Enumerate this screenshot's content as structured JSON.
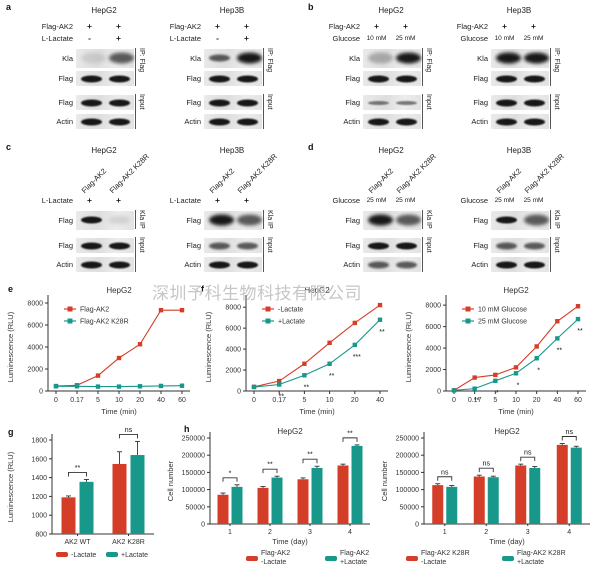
{
  "watermark": {
    "text": "深圳予科生物科技有限公司"
  },
  "colors": {
    "red": "#d43d28",
    "teal": "#17988b",
    "axis": "#333333",
    "band": "#0d0d0d"
  },
  "panels": {
    "a": {
      "letter": "a",
      "groups": [
        {
          "cell": "HepG2",
          "conditions": [
            {
              "label": "Flag-AK2",
              "values": [
                "+",
                "+"
              ]
            },
            {
              "label": "L-Lactate",
              "values": [
                "-",
                "+"
              ]
            }
          ],
          "sections": [
            {
              "label": "IP: Flag",
              "rows": [
                {
                  "label": "Kla",
                  "tall": true,
                  "bands": [
                    "veryfaint smear",
                    "medium smear"
                  ]
                },
                {
                  "label": "Flag",
                  "bands": [
                    "dark",
                    "dark"
                  ]
                }
              ]
            },
            {
              "label": "Input",
              "rows": [
                {
                  "label": "Flag",
                  "bands": [
                    "dark",
                    "dark"
                  ]
                },
                {
                  "label": "Actin",
                  "bands": [
                    "dark",
                    "dark"
                  ]
                }
              ]
            }
          ]
        },
        {
          "cell": "Hep3B",
          "conditions": [
            {
              "label": "Flag-AK2",
              "values": [
                "+",
                "+"
              ]
            },
            {
              "label": "L-Lactate",
              "values": [
                "-",
                "+"
              ]
            }
          ],
          "sections": [
            {
              "label": "IP: Flag",
              "rows": [
                {
                  "label": "Kla",
                  "tall": true,
                  "bands": [
                    "medium",
                    "dark smear"
                  ]
                },
                {
                  "label": "Flag",
                  "bands": [
                    "dark",
                    "dark"
                  ]
                }
              ]
            },
            {
              "label": "Input",
              "rows": [
                {
                  "label": "Flag",
                  "bands": [
                    "dark",
                    "dark"
                  ]
                },
                {
                  "label": "Actin",
                  "bands": [
                    "dark",
                    "dark"
                  ]
                }
              ]
            }
          ]
        }
      ]
    },
    "b": {
      "letter": "b",
      "groups": [
        {
          "cell": "HepG2",
          "conditions": [
            {
              "label": "Flag-AK2",
              "values": [
                "+",
                "+"
              ]
            },
            {
              "label": "Glucose",
              "values": [
                "10 mM",
                "25 mM"
              ]
            }
          ],
          "sections": [
            {
              "label": "IP: Flag",
              "rows": [
                {
                  "label": "Kla",
                  "tall": true,
                  "bands": [
                    "faint smear",
                    "dark smear"
                  ]
                },
                {
                  "label": "Flag",
                  "bands": [
                    "dark",
                    "dark"
                  ]
                }
              ]
            },
            {
              "label": "Input",
              "rows": [
                {
                  "label": "Flag",
                  "bands": [
                    "light",
                    "light"
                  ]
                },
                {
                  "label": "Actin",
                  "bands": [
                    "dark",
                    "dark"
                  ]
                }
              ]
            }
          ]
        },
        {
          "cell": "Hep3B",
          "conditions": [
            {
              "label": "Flag-AK2",
              "values": [
                "+",
                "+"
              ]
            },
            {
              "label": "Glucose",
              "values": [
                "10 mM",
                "25 mM"
              ]
            }
          ],
          "sections": [
            {
              "label": "IP: Flag",
              "rows": [
                {
                  "label": "Kla",
                  "tall": true,
                  "bands": [
                    "dark smear",
                    "dark smear"
                  ]
                },
                {
                  "label": "Flag",
                  "bands": [
                    "dark",
                    "dark"
                  ]
                }
              ]
            },
            {
              "label": "Input",
              "rows": [
                {
                  "label": "Flag",
                  "bands": [
                    "dark",
                    "dark"
                  ]
                },
                {
                  "label": "Actin",
                  "bands": [
                    "dark",
                    "dark"
                  ]
                }
              ]
            }
          ]
        }
      ]
    },
    "c": {
      "letter": "c",
      "groups": [
        {
          "cell": "HepG2",
          "diagonal": [
            "Flag-AK2",
            "Flag-AK2 K28R"
          ],
          "conditions": [
            {
              "label": "L-Lactate",
              "values": [
                "+",
                "+"
              ]
            }
          ],
          "sections": [
            {
              "label": "Kla IP",
              "rows": [
                {
                  "label": "Flag",
                  "tall": true,
                  "bands": [
                    "dark",
                    "veryfaint"
                  ]
                }
              ]
            },
            {
              "label": "Input",
              "rows": [
                {
                  "label": "Flag",
                  "bands": [
                    "dark",
                    "dark"
                  ]
                },
                {
                  "label": "Actin",
                  "bands": [
                    "dark",
                    "dark"
                  ]
                }
              ]
            }
          ]
        },
        {
          "cell": "Hep3B",
          "diagonal": [
            "Flag-AK2",
            "Flag-AK2 K28R"
          ],
          "conditions": [
            {
              "label": "L-Lactate",
              "values": [
                "+",
                "+"
              ]
            }
          ],
          "sections": [
            {
              "label": "Kla IP",
              "rows": [
                {
                  "label": "Flag",
                  "tall": true,
                  "bands": [
                    "dark smear",
                    "medium smear"
                  ]
                }
              ]
            },
            {
              "label": "Input",
              "rows": [
                {
                  "label": "Flag",
                  "bands": [
                    "medium",
                    "medium"
                  ]
                },
                {
                  "label": "Actin",
                  "bands": [
                    "dark",
                    "dark"
                  ]
                }
              ]
            }
          ]
        }
      ]
    },
    "d": {
      "letter": "d",
      "groups": [
        {
          "cell": "HepG2",
          "diagonal": [
            "Flag-AK2",
            "Flag-AK2 K28R"
          ],
          "conditions": [
            {
              "label": "Glucose",
              "values": [
                "25 mM",
                "25 mM"
              ]
            }
          ],
          "sections": [
            {
              "label": "Kla IP",
              "rows": [
                {
                  "label": "Flag",
                  "tall": true,
                  "bands": [
                    "dark smear",
                    "medium smear"
                  ]
                }
              ]
            },
            {
              "label": "Input",
              "rows": [
                {
                  "label": "Flag",
                  "bands": [
                    "dark",
                    "dark"
                  ]
                },
                {
                  "label": "Actin",
                  "bands": [
                    "medium",
                    "medium"
                  ]
                }
              ]
            }
          ]
        },
        {
          "cell": "Hep3B",
          "diagonal": [
            "Flag-AK2",
            "Flag-AK2 K28R"
          ],
          "conditions": [
            {
              "label": "Glucose",
              "values": [
                "25 mM",
                "25 mM"
              ]
            }
          ],
          "sections": [
            {
              "label": "Kla IP",
              "rows": [
                {
                  "label": "Flag",
                  "tall": true,
                  "bands": [
                    "dark",
                    "medium smear"
                  ]
                }
              ]
            },
            {
              "label": "Input",
              "rows": [
                {
                  "label": "Flag",
                  "bands": [
                    "medium",
                    "medium"
                  ]
                },
                {
                  "label": "Actin",
                  "bands": [
                    "dark",
                    "dark"
                  ]
                }
              ]
            }
          ]
        }
      ]
    }
  },
  "chart_data": {
    "e": {
      "kind": "line",
      "letter": "e",
      "title": "HepG2",
      "ylabel": "Luminescence (RLU)",
      "xlabel": "Time (min)",
      "xticks": [
        "0",
        "0.17",
        "5",
        "10",
        "20",
        "40",
        "60"
      ],
      "yticks": [
        0,
        2000,
        4000,
        6000,
        8000
      ],
      "ymax": 8000,
      "series": [
        {
          "name": "Flag-AK2",
          "color": "red",
          "values": [
            450,
            520,
            1400,
            3000,
            4250,
            7350,
            7350
          ]
        },
        {
          "name": "Flag-AK2 K28R",
          "color": "teal",
          "values": [
            430,
            430,
            400,
            400,
            430,
            460,
            480
          ]
        }
      ]
    },
    "f": {
      "kind": "line",
      "letter": "f",
      "title": "HepG2",
      "ylabel": "Luminescence (RLU)",
      "xlabel": "Time (min)",
      "xticks": [
        "0",
        "0.17",
        "5",
        "10",
        "20",
        "40"
      ],
      "yticks": [
        0,
        2000,
        4000,
        6000,
        8000
      ],
      "ymax": 8400,
      "series": [
        {
          "name": "-Lactate",
          "color": "red",
          "values": [
            400,
            950,
            2600,
            4600,
            6500,
            8200
          ]
        },
        {
          "name": "+Lactate",
          "color": "teal",
          "values": [
            380,
            620,
            1500,
            2600,
            4400,
            6800
          ],
          "sig": [
            "",
            "**",
            "**",
            "**",
            "***",
            "**"
          ]
        }
      ]
    },
    "f2": {
      "kind": "line",
      "title": "HepG2",
      "ylabel": "Luminescence (RLU)",
      "xlabel": "Time (min)",
      "xticks": [
        "0",
        "0.17",
        "5",
        "10",
        "20",
        "40",
        "60"
      ],
      "yticks": [
        0,
        2000,
        4000,
        6000,
        8000
      ],
      "ymax": 8200,
      "series": [
        {
          "name": "10 mM Glucose",
          "color": "red",
          "values": [
            60,
            1250,
            1500,
            2200,
            4150,
            6500,
            7900
          ]
        },
        {
          "name": "25 mM Glucose",
          "color": "teal",
          "values": [
            60,
            220,
            950,
            1650,
            3050,
            4900,
            6700
          ],
          "sig": [
            "",
            "**",
            "*",
            "*",
            "*",
            "**",
            "**"
          ]
        }
      ]
    },
    "g": {
      "kind": "bar",
      "letter": "g",
      "title": "",
      "ylabel": "Luminescence (RLU)",
      "xlabel": "",
      "categories": [
        "AK2 WT",
        "AK2 K28R"
      ],
      "ymin": 800,
      "ymax": 1800,
      "yticks": [
        800,
        1000,
        1200,
        1400,
        1600,
        1800
      ],
      "series": [
        {
          "name": [
            "-Lactate"
          ],
          "color": "red",
          "values": [
            1190,
            1545
          ],
          "errors": [
            15,
            130
          ]
        },
        {
          "name": [
            "+Lactate"
          ],
          "color": "teal",
          "values": [
            1355,
            1640
          ],
          "errors": [
            25,
            145
          ]
        }
      ],
      "sig": [
        "**",
        "ns"
      ]
    },
    "h1": {
      "kind": "bar",
      "letter": "h",
      "title": "HepG2",
      "ylabel": "Cell number",
      "xlabel": "Time (day)",
      "categories": [
        "1",
        "2",
        "3",
        "4"
      ],
      "ymin": 0,
      "ymax": 250000,
      "yticks": [
        0,
        50000,
        100000,
        150000,
        200000,
        250000
      ],
      "series": [
        {
          "name": [
            "Flag-AK2",
            "-Lactate"
          ],
          "color": "red",
          "values": [
            85000,
            105000,
            130000,
            170000
          ],
          "errors": [
            5000,
            4000,
            4000,
            4000
          ]
        },
        {
          "name": [
            "Flag-AK2",
            "+Lactate"
          ],
          "color": "teal",
          "values": [
            108000,
            135000,
            163000,
            227000
          ],
          "errors": [
            6000,
            4000,
            5000,
            3000
          ]
        }
      ],
      "sig": [
        "*",
        "**",
        "**",
        "**"
      ]
    },
    "h2": {
      "kind": "bar",
      "title": "HepG2",
      "ylabel": "Cell number",
      "xlabel": "Time (day)",
      "categories": [
        "1",
        "2",
        "3",
        "4"
      ],
      "ymin": 0,
      "ymax": 250000,
      "yticks": [
        0,
        50000,
        100000,
        150000,
        200000,
        250000
      ],
      "series": [
        {
          "name": [
            "Flag-AK2 K28R",
            "-Lactate"
          ],
          "color": "red",
          "values": [
            113000,
            138000,
            170000,
            230000
          ],
          "errors": [
            4000,
            4000,
            4000,
            4000
          ]
        },
        {
          "name": [
            "Flag-AK2 K28R",
            "+Lactate"
          ],
          "color": "teal",
          "values": [
            108000,
            136000,
            163000,
            222000
          ],
          "errors": [
            4000,
            3000,
            4000,
            4000
          ]
        }
      ],
      "sig": [
        "ns",
        "ns",
        "ns",
        "ns"
      ]
    }
  }
}
